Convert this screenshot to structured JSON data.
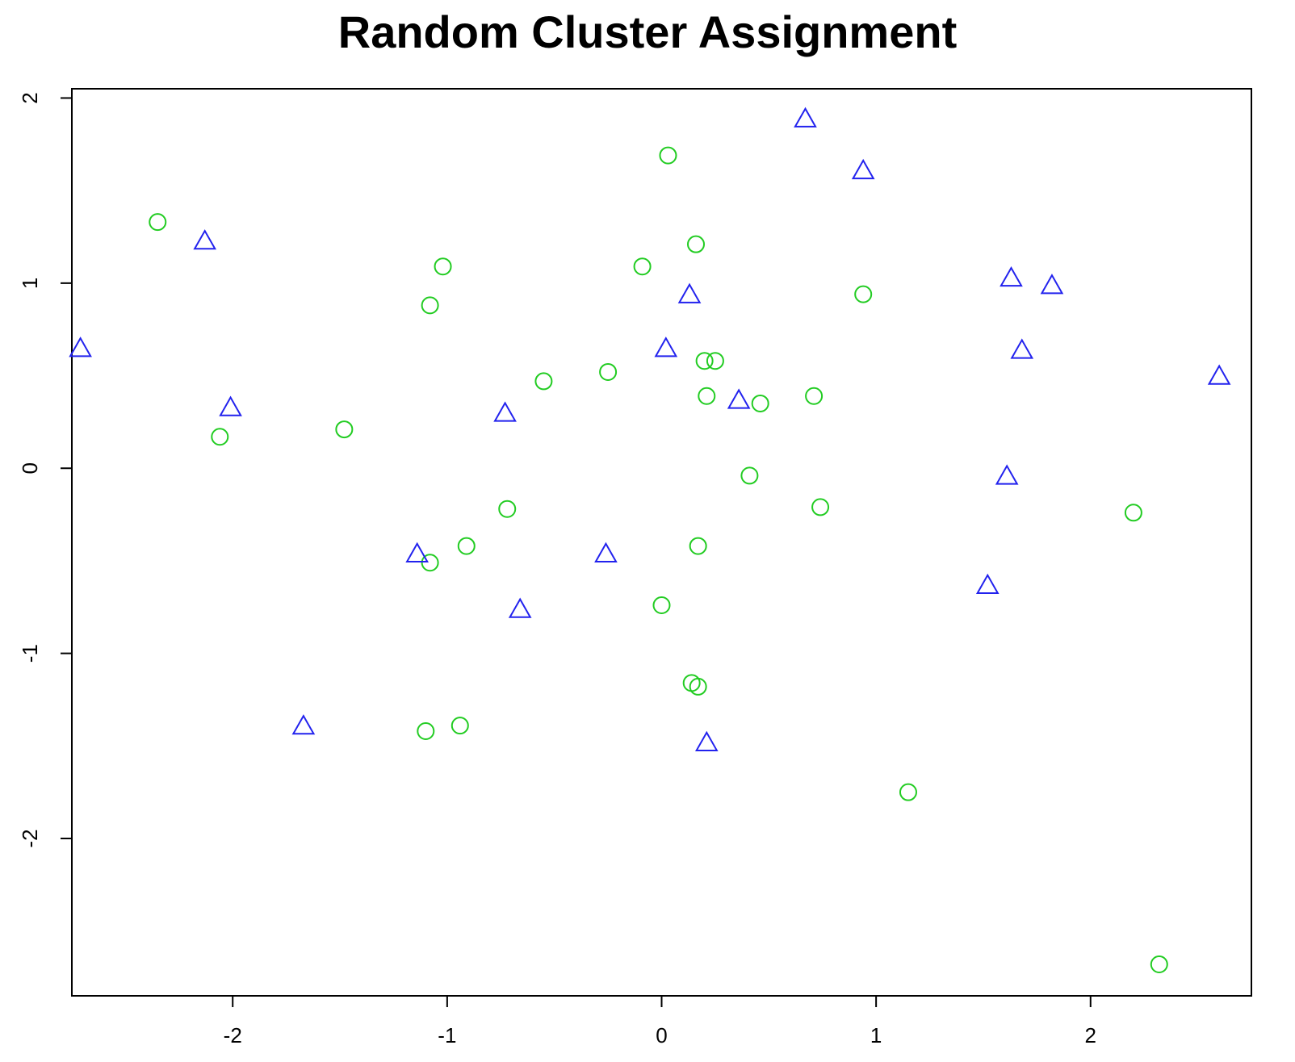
{
  "chart_data": {
    "type": "scatter",
    "title": "Random Cluster Assignment",
    "xlabel": "",
    "ylabel": "",
    "xlim": [
      -2.75,
      2.75
    ],
    "ylim": [
      -2.85,
      2.05
    ],
    "x_ticks": [
      -2,
      -1,
      0,
      1,
      2
    ],
    "y_ticks": [
      -2,
      -1,
      0,
      1,
      2
    ],
    "x_tick_labels": [
      "-2",
      "-1",
      "0",
      "1",
      "2"
    ],
    "y_tick_labels": [
      "-2",
      "-1",
      "0",
      "1",
      "2"
    ],
    "grid": false,
    "series": [
      {
        "marker": "circle",
        "color": "#22cc22",
        "points": [
          {
            "x": 0.03,
            "y": 1.69
          },
          {
            "x": -2.35,
            "y": 1.33
          },
          {
            "x": 0.16,
            "y": 1.21
          },
          {
            "x": -1.02,
            "y": 1.09
          },
          {
            "x": -0.09,
            "y": 1.09
          },
          {
            "x": 0.94,
            "y": 0.94
          },
          {
            "x": -1.08,
            "y": 0.88
          },
          {
            "x": 0.2,
            "y": 0.58
          },
          {
            "x": 0.25,
            "y": 0.58
          },
          {
            "x": -0.25,
            "y": 0.52
          },
          {
            "x": -0.55,
            "y": 0.47
          },
          {
            "x": 0.21,
            "y": 0.39
          },
          {
            "x": 0.71,
            "y": 0.39
          },
          {
            "x": 0.46,
            "y": 0.35
          },
          {
            "x": -1.48,
            "y": 0.21
          },
          {
            "x": -2.06,
            "y": 0.17
          },
          {
            "x": 0.41,
            "y": -0.04
          },
          {
            "x": 0.74,
            "y": -0.21
          },
          {
            "x": -0.72,
            "y": -0.22
          },
          {
            "x": 2.2,
            "y": -0.24
          },
          {
            "x": -0.91,
            "y": -0.42
          },
          {
            "x": 0.17,
            "y": -0.42
          },
          {
            "x": -1.08,
            "y": -0.51
          },
          {
            "x": 0.0,
            "y": -0.74
          },
          {
            "x": 0.14,
            "y": -1.16
          },
          {
            "x": 0.17,
            "y": -1.18
          },
          {
            "x": -0.94,
            "y": -1.39
          },
          {
            "x": -1.1,
            "y": -1.42
          },
          {
            "x": 1.15,
            "y": -1.75
          },
          {
            "x": 2.32,
            "y": -2.68
          }
        ]
      },
      {
        "marker": "triangle",
        "color": "#2222ee",
        "points": [
          {
            "x": 0.67,
            "y": 1.89
          },
          {
            "x": 0.94,
            "y": 1.61
          },
          {
            "x": -2.13,
            "y": 1.23
          },
          {
            "x": 1.63,
            "y": 1.03
          },
          {
            "x": 1.82,
            "y": 0.99
          },
          {
            "x": 0.13,
            "y": 0.94
          },
          {
            "x": -2.71,
            "y": 0.65
          },
          {
            "x": 0.02,
            "y": 0.65
          },
          {
            "x": 1.68,
            "y": 0.64
          },
          {
            "x": 2.6,
            "y": 0.5
          },
          {
            "x": 0.36,
            "y": 0.37
          },
          {
            "x": -2.01,
            "y": 0.33
          },
          {
            "x": -0.73,
            "y": 0.3
          },
          {
            "x": 1.61,
            "y": -0.04
          },
          {
            "x": -1.14,
            "y": -0.46
          },
          {
            "x": -0.26,
            "y": -0.46
          },
          {
            "x": 1.52,
            "y": -0.63
          },
          {
            "x": -0.66,
            "y": -0.76
          },
          {
            "x": -1.67,
            "y": -1.39
          },
          {
            "x": 0.21,
            "y": -1.48
          }
        ]
      }
    ]
  }
}
